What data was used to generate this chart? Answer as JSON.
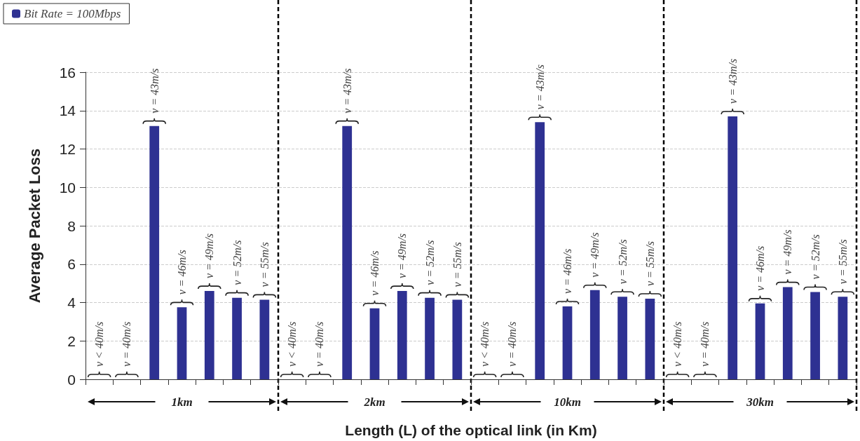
{
  "chart_data": {
    "type": "bar",
    "xlabel": "Length (L) of the optical link (in Km)",
    "ylabel": "Average Packet Loss",
    "categories": [
      "ν < 40m/s",
      "ν = 40m/s",
      "ν = 43m/s",
      "ν = 46m/s",
      "ν = 49m/s",
      "ν = 52m/s",
      "ν = 55m/s",
      "ν < 40m/s",
      "ν = 40m/s",
      "ν = 43m/s",
      "ν = 46m/s",
      "ν = 49m/s",
      "ν = 52m/s",
      "ν = 55m/s",
      "ν < 40m/s",
      "ν = 40m/s",
      "ν = 43m/s",
      "ν = 46m/s",
      "ν = 49m/s",
      "ν = 52m/s",
      "ν = 55m/s",
      "ν < 40m/s",
      "ν = 40m/s",
      "ν = 43m/s",
      "ν = 46m/s",
      "ν = 49m/s",
      "ν = 52m/s",
      "ν = 55m/s"
    ],
    "series": [
      {
        "name": "Bit Rate = 100Mbps",
        "color": "#2e3192",
        "values": [
          0,
          0,
          13.2,
          3.75,
          4.6,
          4.25,
          4.15,
          0,
          0,
          13.2,
          3.7,
          4.6,
          4.25,
          4.15,
          0,
          0,
          13.4,
          3.8,
          4.65,
          4.3,
          4.2,
          0,
          0,
          13.7,
          3.95,
          4.8,
          4.55,
          4.3
        ]
      }
    ],
    "annotations": [
      "1km",
      "2km",
      "10km",
      "30km"
    ],
    "ylim": [
      0,
      16
    ],
    "yticks": [
      0,
      2,
      4,
      6,
      8,
      10,
      12,
      14,
      16
    ],
    "grid": "y",
    "legend": "top left"
  }
}
